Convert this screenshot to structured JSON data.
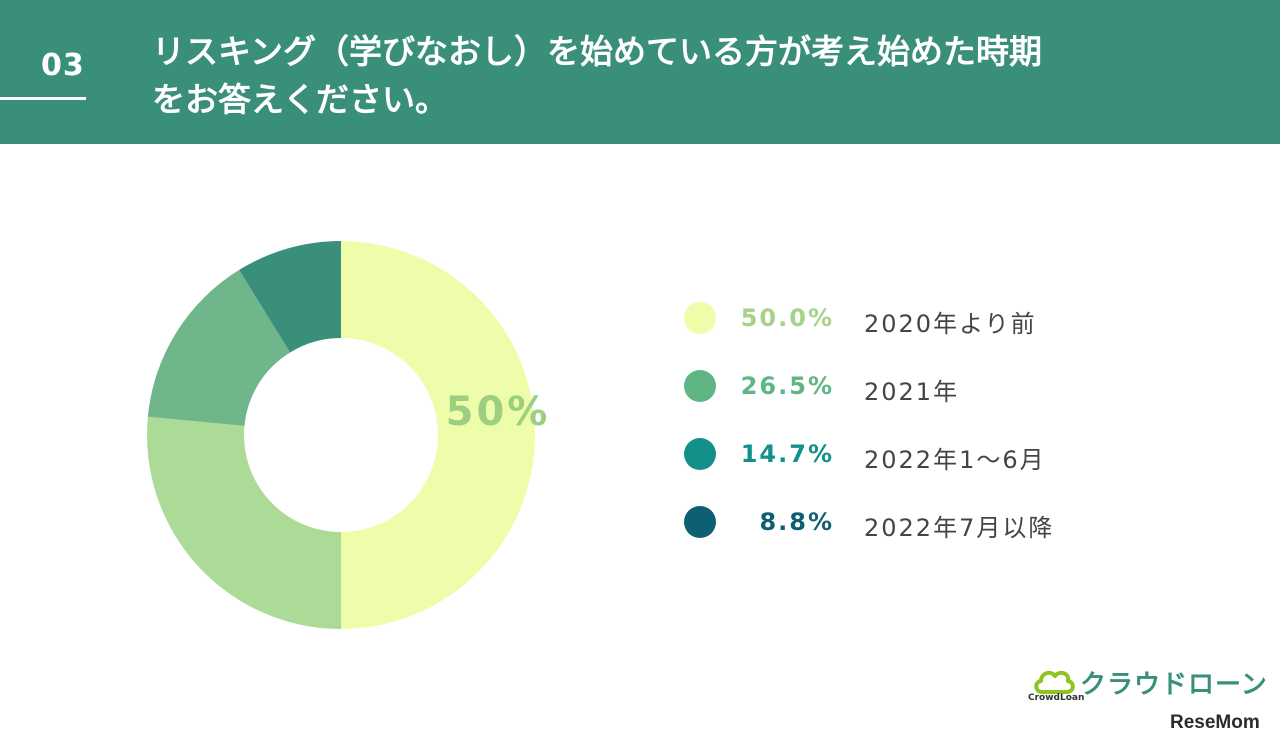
{
  "header": {
    "number": "03",
    "title_line1": "リスキング（学びなおし）を始めている方が考え始めた時期",
    "title_line2": "をお答えください。"
  },
  "chart_data": {
    "type": "pie",
    "categories": [
      "2020年より前",
      "2021年",
      "2022年1〜6月",
      "2022年7月以降"
    ],
    "values": [
      50.0,
      26.5,
      14.7,
      8.8
    ],
    "value_labels": [
      "50.0%",
      "26.5%",
      "14.7%",
      "8.8%"
    ],
    "slice_colors": [
      "#eefda9",
      "#acdb98",
      "#6fb78a",
      "#3a8f7b"
    ],
    "legend_colors": [
      "#eefda9",
      "#5fb583",
      "#13908a",
      "#0f5f73"
    ],
    "center_label": "50%",
    "donut": true,
    "legend_position": "right"
  },
  "brand": {
    "logo_text": "クラウドローン",
    "logo_sub": "CrowdLoan",
    "icon": "cloud-icon",
    "color": "#3a8f7b"
  },
  "watermark": "ReseMom"
}
